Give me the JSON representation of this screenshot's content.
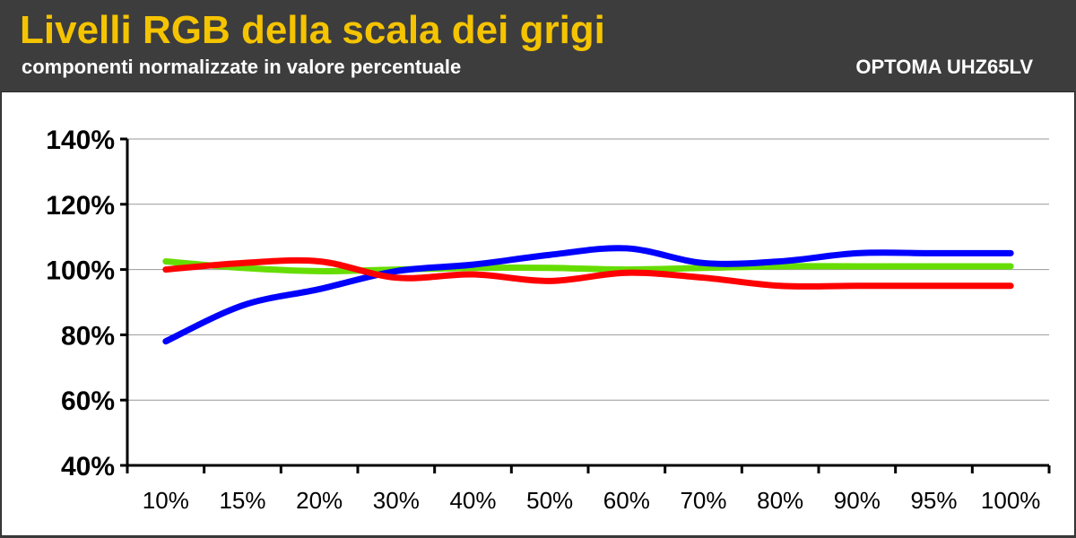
{
  "header": {
    "title": "Livelli RGB della scala dei grigi",
    "subtitle": "componenti normalizzate in valore percentuale",
    "model": "OPTOMA UHZ65LV"
  },
  "colors": {
    "header_bg": "#3d3d3d",
    "title": "#f5c400",
    "red": "#ff0000",
    "green": "#66dd00",
    "blue": "#0000ff",
    "grid": "#999999"
  },
  "chart_data": {
    "type": "line",
    "categories": [
      "10%",
      "15%",
      "20%",
      "30%",
      "40%",
      "50%",
      "60%",
      "70%",
      "80%",
      "90%",
      "95%",
      "100%"
    ],
    "y_ticks": [
      "40%",
      "60%",
      "80%",
      "100%",
      "120%",
      "140%"
    ],
    "ylim": [
      40,
      140
    ],
    "grid": true,
    "legend": "none",
    "series": [
      {
        "color": "#66dd00",
        "values": [
          102.5,
          100.5,
          99.5,
          100,
          100.5,
          100.5,
          100,
          100.5,
          101,
          101,
          101,
          101
        ]
      },
      {
        "color": "#0000ff",
        "values": [
          78,
          89,
          94,
          99.5,
          101.5,
          104.5,
          106.5,
          102,
          102.5,
          105,
          105,
          105
        ]
      },
      {
        "color": "#ff0000",
        "values": [
          100,
          102,
          102.5,
          97.5,
          98.5,
          96.5,
          99,
          97.5,
          95,
          95,
          95,
          95
        ]
      }
    ]
  }
}
